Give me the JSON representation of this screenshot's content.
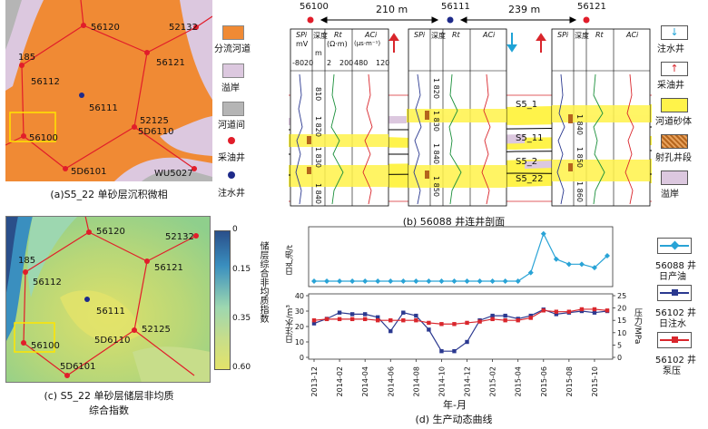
{
  "panel_a": {
    "caption": "(a)S5_22 单砂层沉积微相",
    "wells": [
      {
        "name": "56120",
        "kind": "oil"
      },
      {
        "name": "52132",
        "kind": "oil"
      },
      {
        "name": "185",
        "kind": "oil"
      },
      {
        "name": "56112",
        "kind": "oil"
      },
      {
        "name": "56121",
        "kind": "oil"
      },
      {
        "name": "56111",
        "kind": "water"
      },
      {
        "name": "52125",
        "kind": "oil"
      },
      {
        "name": "5D6110",
        "kind": "oil"
      },
      {
        "name": "56100",
        "kind": "oil"
      },
      {
        "name": "5D6101",
        "kind": "oil"
      },
      {
        "name": "WU5027",
        "kind": "oil"
      }
    ],
    "legend": [
      "分流河道",
      "溢岸",
      "河道间",
      "采油井",
      "注水井"
    ],
    "colors": {
      "channel": "#f08a34",
      "overbank": "#dcc8df",
      "interchannel": "#b5b5b5"
    }
  },
  "panel_b": {
    "caption": "(b) 56088 井连井剖面",
    "wells": [
      "56100",
      "56111",
      "56121"
    ],
    "distances": [
      "210 m",
      "239 m"
    ],
    "track_headers": {
      "spi": "SPi",
      "spi_unit": "mV",
      "depth": "深度",
      "depth_unit": "m",
      "rt": "Rt",
      "rt_unit": "(Ω·m)",
      "ac": "ACi",
      "ac_unit": "(μs·m⁻¹)"
    },
    "scales": {
      "spi": [
        "-80",
        "20"
      ],
      "rt": [
        "2",
        "200"
      ],
      "ac": [
        "480",
        "120"
      ]
    },
    "depths_left": [
      "810",
      "1 820",
      "1 830",
      "1 840"
    ],
    "depths_mid": [
      "1 820",
      "1 830",
      "1 840",
      "1 850"
    ],
    "depths_right": [
      "1 840",
      "1 850",
      "1 860"
    ],
    "layers": [
      "S5_1",
      "S5_11",
      "S5_2",
      "S5_22"
    ],
    "legend": [
      "注水井",
      "采油井",
      "河道砂体",
      "射孔井段",
      "溢岸"
    ]
  },
  "panel_c": {
    "caption_line1": "(c) S5_22 单砂层储层非均质",
    "caption_line2": "综合指数",
    "wells": [
      "56120",
      "52132",
      "185",
      "56112",
      "56121",
      "56111",
      "52125",
      "5D6110",
      "56100",
      "5D6101"
    ],
    "colorbar_title": "储层综合非均质指数",
    "colorbar_ticks": [
      "0",
      "0.15",
      "0.35",
      "0.60"
    ]
  },
  "panel_d": {
    "caption": "(d) 生产动态曲线",
    "x_title": "年-月",
    "ylabel_top": "日产油/t",
    "ylabel_bottom_left": "日注水/m³",
    "ylabel_bottom_right": "压力/MPa",
    "x_ticks": [
      "2013-12",
      "2014-02",
      "2014-04",
      "2014-06",
      "2014-08",
      "2014-10",
      "2014-12",
      "2015-02",
      "2015-04",
      "2015-06",
      "2015-08",
      "2015-10"
    ],
    "bottom_left_ticks": [
      "0",
      "10",
      "20",
      "30",
      "40"
    ],
    "bottom_right_ticks": [
      "0",
      "5",
      "10",
      "15",
      "20",
      "25"
    ],
    "legend": [
      {
        "label_a": "56088 井",
        "label_b": "日产油",
        "color": "#29a3d6"
      },
      {
        "label_a": "56102 井",
        "label_b": "日注水",
        "color": "#2b3990"
      },
      {
        "label_a": "56102 井",
        "label_b": "泵压",
        "color": "#d9262c"
      }
    ]
  },
  "chart_data": {
    "type": "line",
    "x": [
      "2013-12",
      "2014-01",
      "2014-02",
      "2014-03",
      "2014-04",
      "2014-05",
      "2014-06",
      "2014-07",
      "2014-08",
      "2014-09",
      "2014-10",
      "2014-11",
      "2014-12",
      "2015-01",
      "2015-02",
      "2015-03",
      "2015-04",
      "2015-05",
      "2015-06",
      "2015-07",
      "2015-08",
      "2015-09",
      "2015-10",
      "2015-11"
    ],
    "series": [
      {
        "name": "56088 井日产油",
        "values": [
          0,
          0,
          0,
          0,
          0,
          0,
          0,
          0,
          0,
          0,
          0,
          0,
          0,
          0,
          0,
          0,
          0,
          0.5,
          2.8,
          1.3,
          1.0,
          1.0,
          0.8,
          1.5
        ],
        "color": "#29a3d6"
      },
      {
        "name": "56102 井日注水",
        "values": [
          22,
          25,
          29,
          28,
          28,
          26,
          17,
          29,
          27,
          18,
          4,
          4,
          10,
          24,
          27,
          27,
          25,
          27,
          31,
          28,
          29,
          30,
          29,
          30
        ],
        "color": "#2b3990"
      },
      {
        "name": "56102 井泵压",
        "values": [
          15,
          15.5,
          15.5,
          15.5,
          15.5,
          15,
          15,
          15,
          15,
          14,
          13.5,
          13.5,
          14,
          14.5,
          15.5,
          15,
          15,
          16,
          19,
          18.5,
          18.5,
          19.5,
          19.5,
          19
        ],
        "color": "#d9262c"
      }
    ]
  }
}
